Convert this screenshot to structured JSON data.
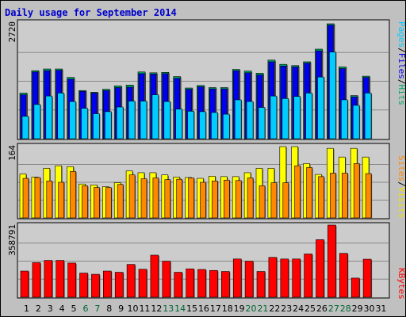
{
  "chart_data": [
    {
      "type": "bar",
      "title": "Daily usage for September 2014",
      "categories": [
        "1",
        "2",
        "3",
        "4",
        "5",
        "6",
        "7",
        "8",
        "9",
        "10",
        "11",
        "12",
        "13",
        "14",
        "15",
        "16",
        "17",
        "18",
        "19",
        "20",
        "21",
        "22",
        "23",
        "24",
        "25",
        "26",
        "27",
        "28",
        "29",
        "30",
        "31"
      ],
      "weekend_days": [
        "6",
        "7",
        "13",
        "14",
        "20",
        "21",
        "27",
        "28"
      ],
      "ymax_label": "2720",
      "ymax": 2720,
      "side_label": {
        "parts": [
          "Pages",
          "/",
          "Files",
          "/",
          "Hits"
        ],
        "colors": [
          "#00ccff",
          "#000000",
          "#0000ee",
          "#000000",
          "#00aa66"
        ]
      },
      "series": [
        {
          "name": "Hits",
          "color": "#00aa66",
          "values": [
            1080,
            1610,
            1650,
            1650,
            1450,
            1140,
            1100,
            1170,
            1250,
            1270,
            1580,
            1560,
            1570,
            1470,
            1200,
            1260,
            1210,
            1210,
            1640,
            1600,
            1550,
            1860,
            1760,
            1730,
            1820,
            2120,
            2720,
            1700,
            1020,
            1480,
            null
          ]
        },
        {
          "name": "Files",
          "color": "#0000ee",
          "values": [
            1040,
            1580,
            1610,
            1620,
            1410,
            1120,
            1080,
            1140,
            1210,
            1220,
            1540,
            1530,
            1540,
            1430,
            1170,
            1230,
            1180,
            1180,
            1610,
            1560,
            1510,
            1820,
            1720,
            1700,
            1790,
            2080,
            2690,
            1660,
            990,
            1450,
            null
          ]
        },
        {
          "name": "Pages",
          "color": "#00ccff",
          "values": [
            530,
            810,
            1010,
            1080,
            880,
            720,
            590,
            640,
            750,
            890,
            890,
            1040,
            880,
            700,
            650,
            640,
            620,
            580,
            920,
            880,
            740,
            1010,
            950,
            1000,
            1080,
            1460,
            2050,
            920,
            790,
            1080,
            null
          ]
        }
      ]
    },
    {
      "type": "bar",
      "ymax_label": "164",
      "ymax": 164,
      "side_label": {
        "parts": [
          "Sites",
          "/",
          "Visits"
        ],
        "colors": [
          "#ff8800",
          "#000000",
          "#f0e000"
        ]
      },
      "series": [
        {
          "name": "Visits",
          "color": "#ffff00",
          "values": [
            101,
            94,
            114,
            120,
            118,
            78,
            76,
            72,
            81,
            108,
            104,
            104,
            99,
            94,
            93,
            91,
            96,
            95,
            95,
            104,
            114,
            114,
            164,
            164,
            125,
            100,
            160,
            140,
            160,
            140,
            null
          ]
        },
        {
          "name": "Sites",
          "color": "#ff8800",
          "values": [
            91,
            93,
            85,
            82,
            107,
            74,
            70,
            70,
            77,
            99,
            90,
            92,
            88,
            89,
            92,
            82,
            85,
            87,
            86,
            92,
            74,
            81,
            81,
            120,
            116,
            95,
            103,
            103,
            125,
            102,
            null
          ]
        }
      ]
    },
    {
      "type": "bar",
      "ymax_label": "358791",
      "ymax": 358791,
      "side_label": {
        "parts": [
          "KBytes"
        ],
        "colors": [
          "#ff0000"
        ]
      },
      "series": [
        {
          "name": "KBytes",
          "color": "#ff0000",
          "values": [
            130000,
            172000,
            183000,
            183000,
            170000,
            120000,
            114000,
            130000,
            124000,
            163000,
            139000,
            209000,
            179000,
            124000,
            141000,
            138000,
            133000,
            128000,
            190000,
            179000,
            128000,
            198000,
            190000,
            190000,
            215000,
            286000,
            358791,
            218000,
            95000,
            189000,
            null
          ]
        }
      ]
    }
  ]
}
